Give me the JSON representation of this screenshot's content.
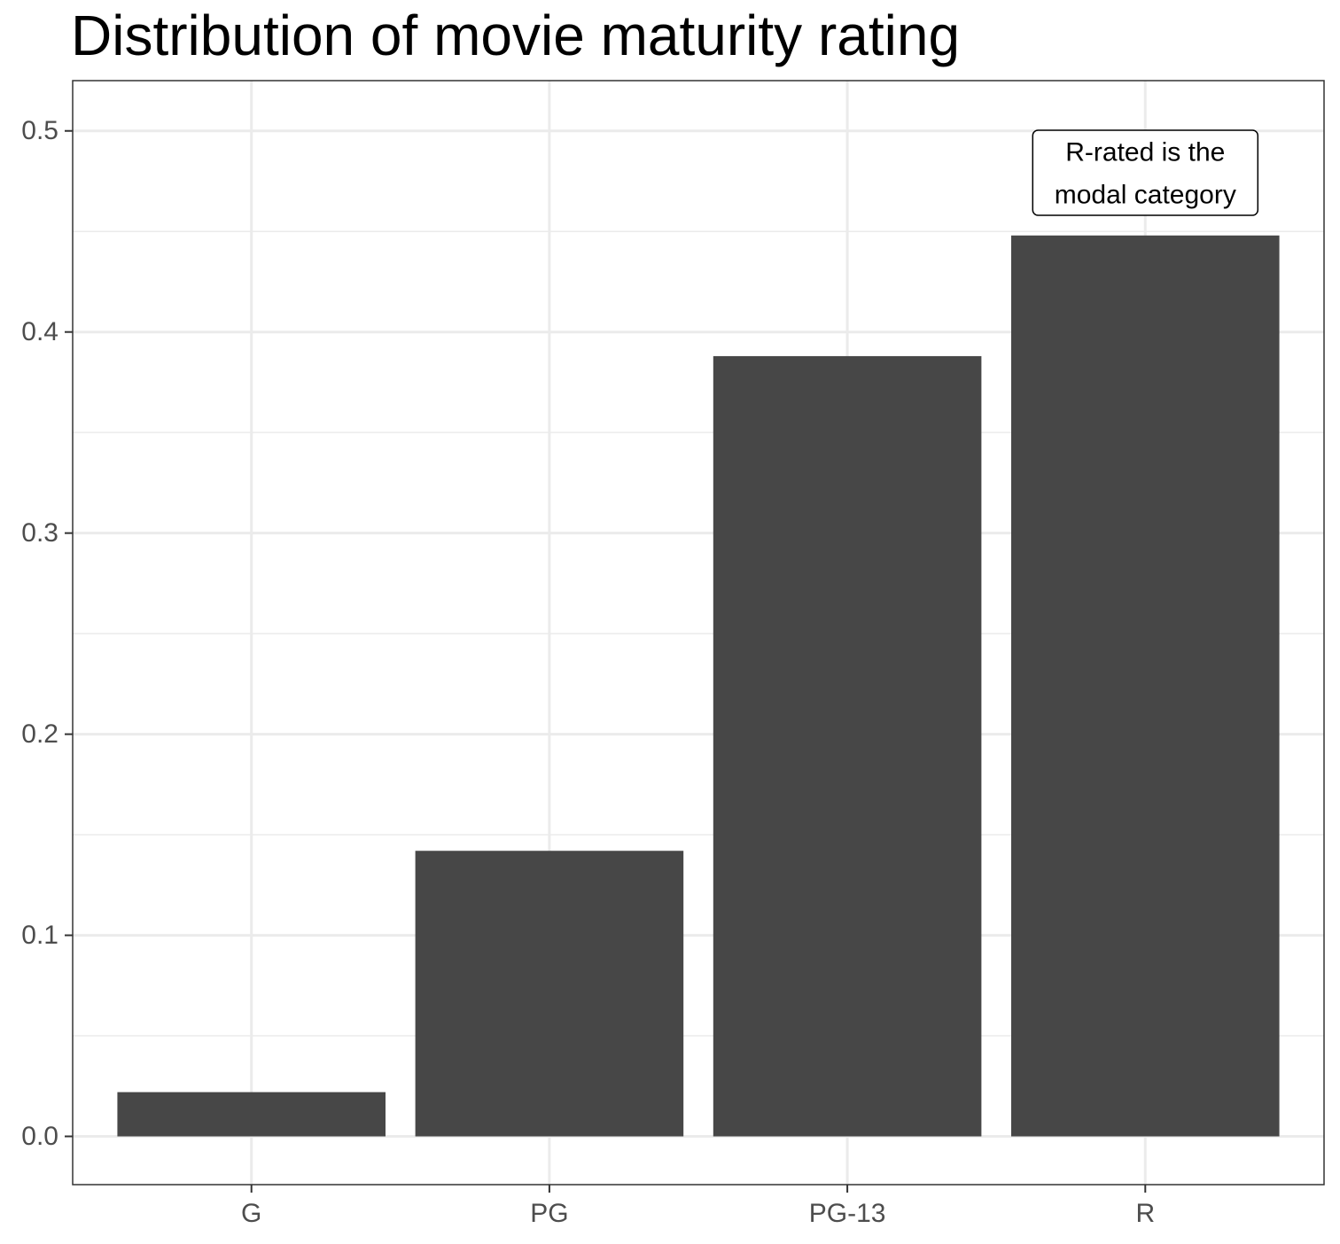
{
  "chart_data": {
    "type": "bar",
    "title": "Distribution of movie maturity rating",
    "xlabel": "",
    "ylabel": "",
    "categories": [
      "G",
      "PG",
      "PG-13",
      "R"
    ],
    "values": [
      0.022,
      0.142,
      0.388,
      0.448
    ],
    "ylim": [
      -0.024,
      0.525
    ],
    "y_ticks": [
      0.0,
      0.1,
      0.2,
      0.3,
      0.4,
      0.5
    ],
    "y_tick_labels": [
      "0.0",
      "0.1",
      "0.2",
      "0.3",
      "0.4",
      "0.5"
    ],
    "grid": true,
    "legend": "none",
    "bar_color": "#474747",
    "grid_color": "#ebebeb",
    "annotation": {
      "category": "R",
      "lines": [
        "R-rated is the",
        "modal category"
      ]
    }
  }
}
